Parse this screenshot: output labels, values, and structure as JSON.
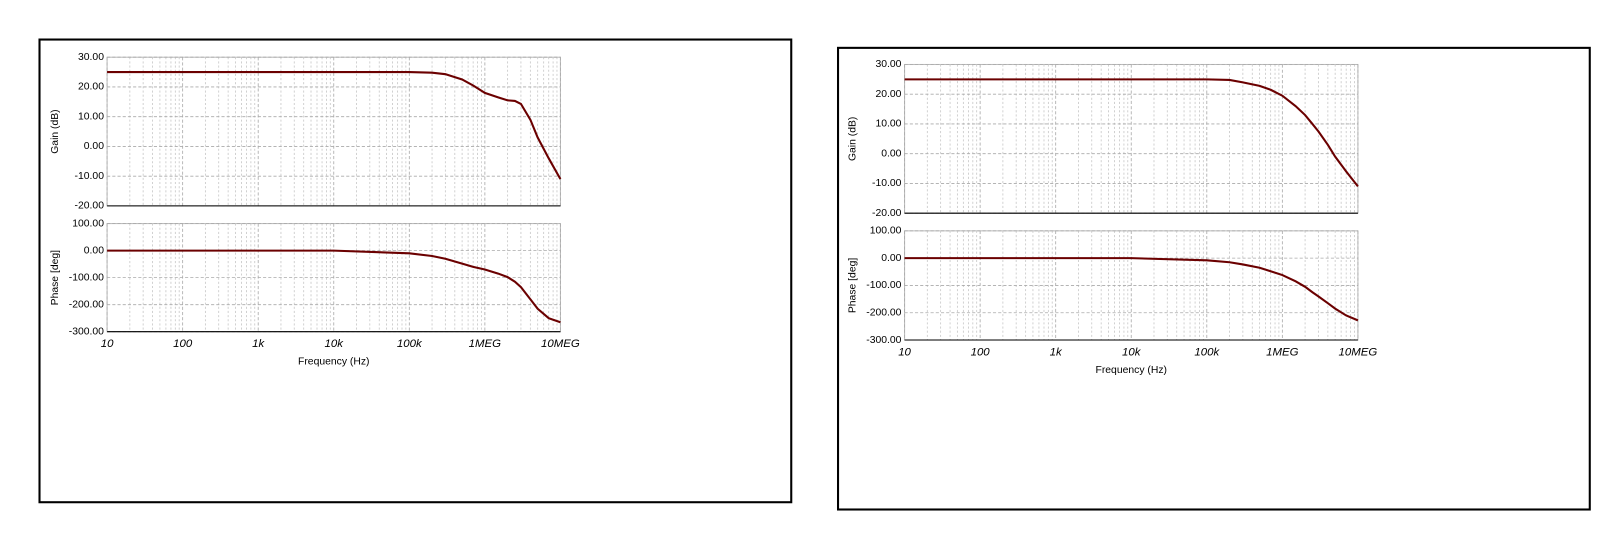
{
  "chart_data": [
    {
      "type": "line",
      "log_x": true,
      "grid": true,
      "minor_grid": true,
      "xlabel": "Frequency (Hz)",
      "x": [
        10,
        100,
        1000,
        10000,
        100000,
        200000,
        300000,
        500000,
        700000,
        1000000,
        1500000,
        2000000,
        2500000,
        3000000,
        4000000,
        5000000,
        7000000,
        10000000
      ],
      "xlim": [
        10,
        10000000
      ],
      "xticks": [
        10,
        100,
        {
          "value": 1000,
          "label": "1k"
        },
        {
          "value": 10000,
          "label": "10k"
        },
        {
          "value": 100000,
          "label": "100k"
        },
        {
          "value": 1000000,
          "label": "1MEG"
        },
        {
          "value": 10000000,
          "label": "10MEG"
        }
      ],
      "panels": [
        {
          "ylabel": "Gain (dB)",
          "ylim": [
            -20,
            30
          ],
          "yticks": [
            {
              "value": -20,
              "label": "-20.00"
            },
            {
              "value": -10,
              "label": "-10.00"
            },
            {
              "value": 0,
              "label": "0.00"
            },
            {
              "value": 10,
              "label": "10.00"
            },
            {
              "value": 20,
              "label": "20.00"
            },
            {
              "value": 30,
              "label": "30.00"
            }
          ],
          "series": [
            {
              "color": "#6b0000",
              "values": [
                25,
                25,
                25,
                25,
                25,
                24.8,
                24.3,
                22.5,
                20.5,
                18,
                16.5,
                15.5,
                15.3,
                14.3,
                9,
                3,
                -4,
                -11
              ]
            }
          ]
        },
        {
          "ylabel": "Phase [deg]",
          "ylim": [
            -300,
            100
          ],
          "yticks": [
            {
              "value": -300,
              "label": "-300.00"
            },
            {
              "value": -200,
              "label": "-200.00"
            },
            {
              "value": -100,
              "label": "-100.00"
            },
            {
              "value": 0,
              "label": "0.00"
            },
            {
              "value": 100,
              "label": "100.00"
            }
          ],
          "series": [
            {
              "color": "#6b0000",
              "values": [
                0,
                0,
                0,
                0,
                -10,
                -20,
                -30,
                -48,
                -60,
                -70,
                -85,
                -98,
                -115,
                -135,
                -180,
                -215,
                -250,
                -265
              ]
            }
          ]
        }
      ]
    },
    {
      "type": "line",
      "log_x": true,
      "grid": true,
      "minor_grid": true,
      "xlabel": "Frequency (Hz)",
      "x": [
        10,
        100,
        1000,
        10000,
        100000,
        200000,
        300000,
        500000,
        700000,
        1000000,
        1500000,
        2000000,
        2500000,
        3000000,
        4000000,
        5000000,
        7000000,
        10000000
      ],
      "xlim": [
        10,
        10000000
      ],
      "xticks": [
        10,
        100,
        {
          "value": 1000,
          "label": "1k"
        },
        {
          "value": 10000,
          "label": "10k"
        },
        {
          "value": 100000,
          "label": "100k"
        },
        {
          "value": 1000000,
          "label": "1MEG"
        },
        {
          "value": 10000000,
          "label": "10MEG"
        }
      ],
      "panels": [
        {
          "ylabel": "Gain (dB)",
          "ylim": [
            -20,
            30
          ],
          "yticks": [
            {
              "value": -20,
              "label": "-20.00"
            },
            {
              "value": -10,
              "label": "-10.00"
            },
            {
              "value": 0,
              "label": "0.00"
            },
            {
              "value": 10,
              "label": "10.00"
            },
            {
              "value": 20,
              "label": "20.00"
            },
            {
              "value": 30,
              "label": "30.00"
            }
          ],
          "series": [
            {
              "color": "#6b0000",
              "values": [
                25,
                25,
                25,
                25,
                25,
                24.8,
                24,
                22.8,
                21.5,
                19.5,
                16,
                13,
                10,
                7.5,
                3,
                -1,
                -6,
                -11
              ]
            }
          ]
        },
        {
          "ylabel": "Phase [deg]",
          "ylim": [
            -300,
            100
          ],
          "yticks": [
            {
              "value": -300,
              "label": "-300.00"
            },
            {
              "value": -200,
              "label": "-200.00"
            },
            {
              "value": -100,
              "label": "-100.00"
            },
            {
              "value": 0,
              "label": "0.00"
            },
            {
              "value": 100,
              "label": "100.00"
            }
          ],
          "series": [
            {
              "color": "#6b0000",
              "values": [
                0,
                0,
                0,
                0,
                -8,
                -15,
                -23,
                -35,
                -48,
                -62,
                -85,
                -105,
                -125,
                -140,
                -165,
                -185,
                -210,
                -228
              ]
            }
          ]
        }
      ]
    }
  ]
}
